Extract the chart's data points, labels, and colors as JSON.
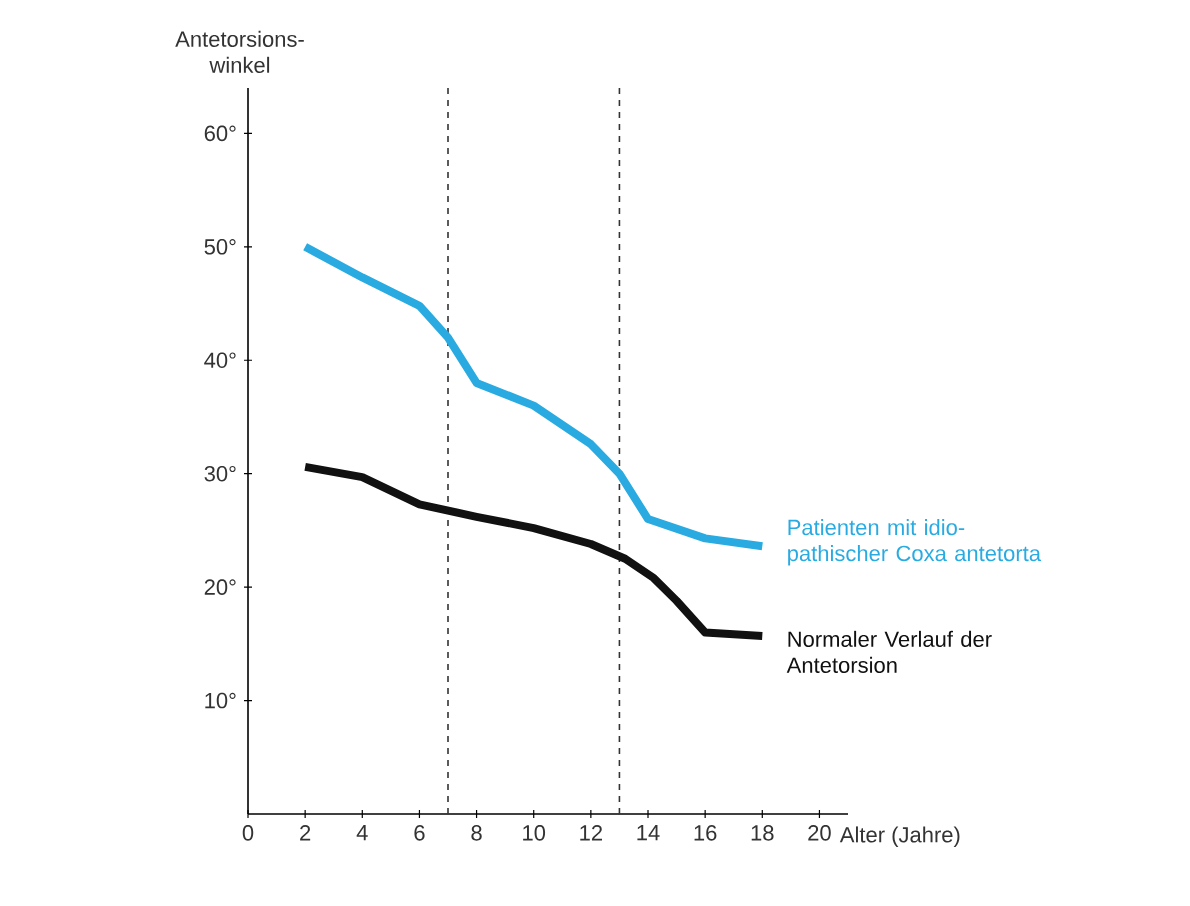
{
  "chart_data": {
    "type": "line",
    "ylabel": "Antetorsions-winkel",
    "xlabel": "Alter (Jahre)",
    "xlim": [
      0,
      21
    ],
    "ylim": [
      0,
      64
    ],
    "xticks": [
      0,
      2,
      4,
      6,
      8,
      10,
      12,
      14,
      16,
      18,
      20
    ],
    "yticks": [
      {
        "value": 10,
        "label": "10°"
      },
      {
        "value": 20,
        "label": "20°"
      },
      {
        "value": 30,
        "label": "30°"
      },
      {
        "value": 40,
        "label": "40°"
      },
      {
        "value": 50,
        "label": "50°"
      },
      {
        "value": 60,
        "label": "60°"
      }
    ],
    "series": [
      {
        "name": "Patienten mit idio-pathischer Coxa antetorta",
        "color": "#29abe2",
        "x": [
          2,
          4,
          6,
          7,
          8,
          10,
          12,
          13,
          14,
          16,
          18
        ],
        "values": [
          50,
          47.3,
          44.8,
          42,
          38,
          36,
          32.6,
          30,
          26,
          24.3,
          23.6
        ]
      },
      {
        "name": "Normaler Verlauf der Antetorsion",
        "color": "#111111",
        "x": [
          2,
          4,
          6,
          8,
          10,
          12,
          13.2,
          14.2,
          15,
          16,
          18
        ],
        "values": [
          30.6,
          29.7,
          27.3,
          26.2,
          25.2,
          23.8,
          22.5,
          20.8,
          18.8,
          16,
          15.7
        ]
      }
    ],
    "ref_lines": [
      {
        "axis": "x",
        "value": 7,
        "color": "#333333",
        "line_style": "dashed"
      },
      {
        "axis": "x",
        "value": 13,
        "color": "#333333",
        "line_style": "dashed"
      }
    ],
    "grid": false,
    "legend": false,
    "marker": "none",
    "line_style": "solid"
  }
}
